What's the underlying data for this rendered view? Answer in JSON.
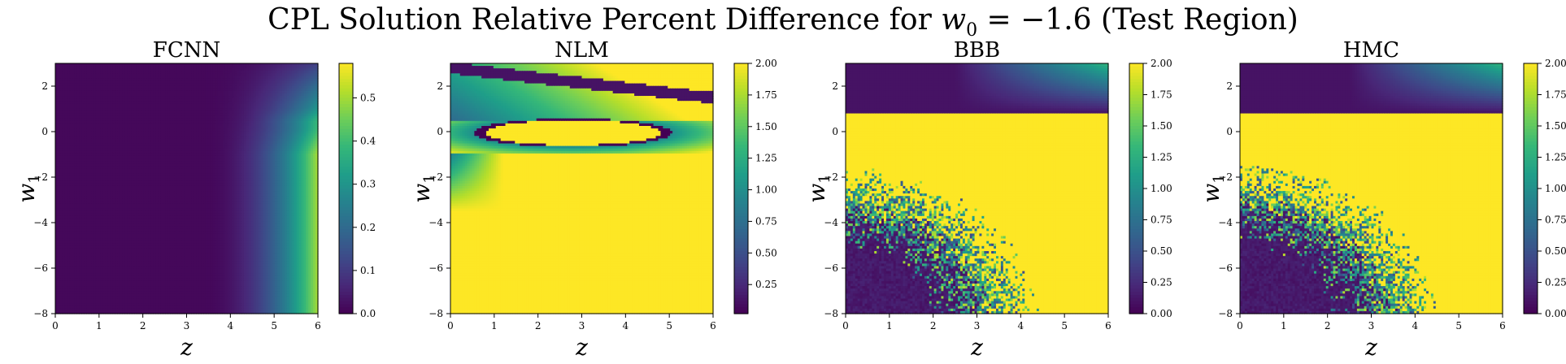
{
  "title": {
    "prefix": "CPL Solution Relative Percent Difference for ",
    "var": "w",
    "sub": "0",
    "eq": " = −1.6",
    "suffix": " (Test Region)"
  },
  "colors": {
    "viridis": [
      "#440154",
      "#482878",
      "#3e4a89",
      "#31688e",
      "#26828e",
      "#1f9e89",
      "#35b779",
      "#6ece58",
      "#b5de2b",
      "#fde725"
    ]
  },
  "chart_data": [
    {
      "type": "heatmap",
      "title": "FCNN",
      "xlabel": "z",
      "ylabel": "w1",
      "xlim": [
        0,
        6
      ],
      "ylim": [
        -8,
        3
      ],
      "xticks": [
        "0",
        "1",
        "2",
        "3",
        "4",
        "5",
        "6"
      ],
      "yticks": [
        "2",
        "0",
        "−2",
        "−4",
        "−6",
        "−8"
      ],
      "colorbar": {
        "range": [
          0,
          0.58
        ],
        "ticks": [
          "0.0",
          "0.1",
          "0.2",
          "0.3",
          "0.4",
          "0.5"
        ]
      },
      "pattern": "smooth-right-edge"
    },
    {
      "type": "heatmap",
      "title": "NLM",
      "xlabel": "z",
      "ylabel": "w1",
      "xlim": [
        0,
        6
      ],
      "ylim": [
        -8,
        3
      ],
      "xticks": [
        "0",
        "1",
        "2",
        "3",
        "4",
        "5",
        "6"
      ],
      "yticks": [
        "2",
        "0",
        "−2",
        "−4",
        "−6",
        "−8"
      ],
      "colorbar": {
        "range": [
          0.02,
          2.0
        ],
        "ticks": [
          "0.25",
          "0.50",
          "0.75",
          "1.00",
          "1.25",
          "1.50",
          "1.75",
          "2.00"
        ]
      },
      "pattern": "saturated-with-ellipse"
    },
    {
      "type": "heatmap",
      "title": "BBB",
      "xlabel": "z",
      "ylabel": "w1",
      "xlim": [
        0,
        6
      ],
      "ylim": [
        -8,
        3
      ],
      "xticks": [
        "0",
        "1",
        "2",
        "3",
        "4",
        "5",
        "6"
      ],
      "yticks": [
        "2",
        "0",
        "−2",
        "−4",
        "−6",
        "−8"
      ],
      "colorbar": {
        "range": [
          0,
          2.0
        ],
        "ticks": [
          "0.00",
          "0.25",
          "0.50",
          "0.75",
          "1.00",
          "1.25",
          "1.50",
          "1.75",
          "2.00"
        ]
      },
      "pattern": "noisy-corner"
    },
    {
      "type": "heatmap",
      "title": "HMC",
      "xlabel": "z",
      "ylabel": "w1",
      "xlim": [
        0,
        6
      ],
      "ylim": [
        -8,
        3
      ],
      "xticks": [
        "0",
        "1",
        "2",
        "3",
        "4",
        "5",
        "6"
      ],
      "yticks": [
        "2",
        "0",
        "−2",
        "−4",
        "−6",
        "−8"
      ],
      "colorbar": {
        "range": [
          0,
          2.0
        ],
        "ticks": [
          "0.00",
          "0.25",
          "0.50",
          "0.75",
          "1.00",
          "1.25",
          "1.50",
          "1.75",
          "2.00"
        ]
      },
      "pattern": "noisy-corner"
    }
  ]
}
